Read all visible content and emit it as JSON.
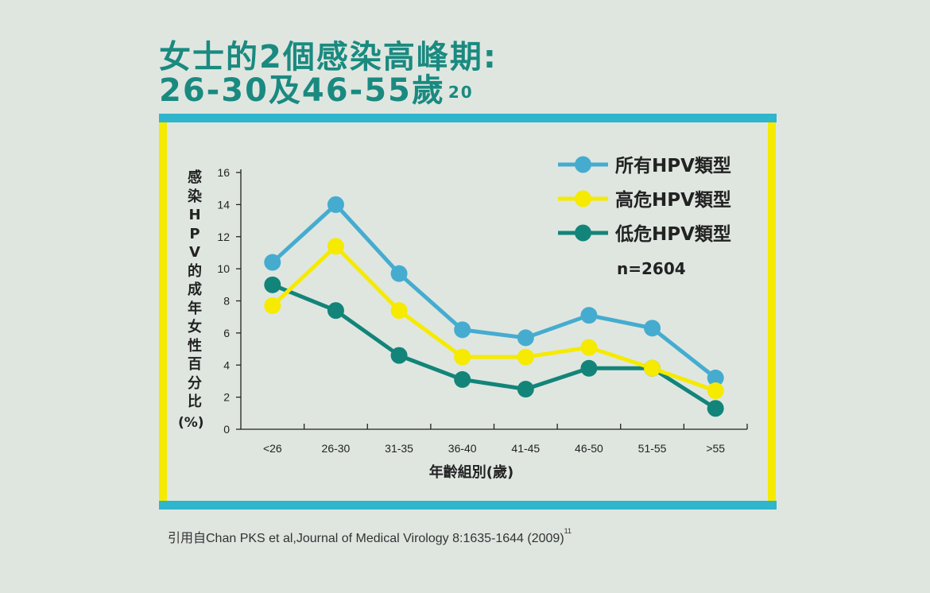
{
  "title": {
    "line1": "女士的2個感染高峰期:",
    "line2": "26-30及46-55歲",
    "line2_ref": "20"
  },
  "source": {
    "text": "引用自Chan PKS et al,Journal of Medical Virology 8:1635-1644 (2009)",
    "ref": "11"
  },
  "chart_data": {
    "type": "line",
    "categories": [
      "<26",
      "26-30",
      "31-35",
      "36-40",
      "41-45",
      "46-50",
      "51-55",
      ">55"
    ],
    "ylim": [
      0,
      16
    ],
    "yticks": [
      0,
      2,
      4,
      6,
      8,
      10,
      12,
      14,
      16
    ],
    "ylabel": "感染HPV的成年女性百分比",
    "ylabel_unit": "(%)",
    "xlabel": "年齡組別(歲)",
    "annotation": "n=2604",
    "legend_position": "top-right",
    "series": [
      {
        "name": "所有HPV類型",
        "color": "#45acd0",
        "values": [
          10.4,
          14.0,
          9.7,
          6.2,
          5.7,
          7.1,
          6.3,
          3.2
        ]
      },
      {
        "name": "高危HPV類型",
        "color": "#f5ea00",
        "values": [
          7.7,
          11.4,
          7.4,
          4.5,
          4.5,
          5.1,
          3.8,
          2.4
        ]
      },
      {
        "name": "低危HPV類型",
        "color": "#138479",
        "values": [
          9.0,
          7.4,
          4.6,
          3.1,
          2.5,
          3.8,
          3.8,
          1.3
        ]
      }
    ]
  }
}
